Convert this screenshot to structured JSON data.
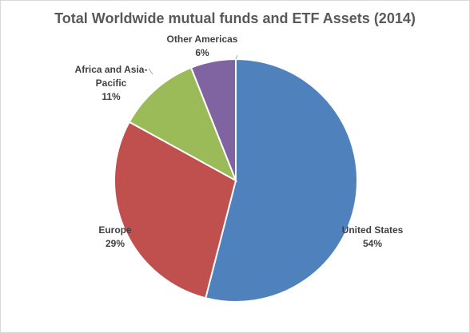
{
  "chart_data": {
    "type": "pie",
    "title": "Total Worldwide mutual funds and ETF Assets (2014)",
    "slices": [
      {
        "label": "United States",
        "label_lines": [
          "United States"
        ],
        "value": 54,
        "value_label": "54%",
        "color": "#4f81bd"
      },
      {
        "label": "Europe",
        "label_lines": [
          "Europe"
        ],
        "value": 29,
        "value_label": "29%",
        "color": "#c0504d"
      },
      {
        "label": "Africa and Asia-Pacific",
        "label_lines": [
          "Africa and Asia-",
          "Pacific"
        ],
        "value": 11,
        "value_label": "11%",
        "color": "#9bbb59"
      },
      {
        "label": "Other Americas",
        "label_lines": [
          "Other Americas"
        ],
        "value": 6,
        "value_label": "6%",
        "color": "#8064a2"
      }
    ],
    "start": "12 o'clock",
    "direction": "clockwise",
    "legend": "none",
    "data_labels": "category name and percentage"
  }
}
